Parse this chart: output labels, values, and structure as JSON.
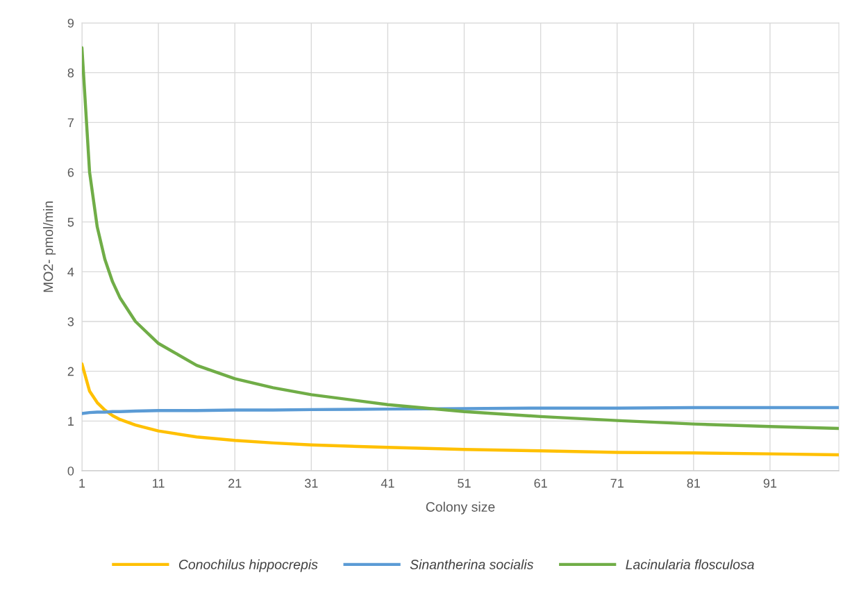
{
  "chart_data": {
    "type": "line",
    "xlabel": "Colony size",
    "ylabel": "MO2- pmol/min",
    "xlim": [
      1,
      100
    ],
    "xticks": [
      1,
      11,
      21,
      31,
      41,
      51,
      61,
      71,
      81,
      91
    ],
    "ylim": [
      0,
      9
    ],
    "yticks": [
      0,
      1,
      2,
      3,
      4,
      5,
      6,
      7,
      8,
      9
    ],
    "grid": true,
    "legend": "bottom",
    "marker": "none",
    "line_style": "solid",
    "x": [
      1,
      2,
      3,
      4,
      5,
      6,
      8,
      11,
      16,
      21,
      26,
      31,
      41,
      51,
      61,
      71,
      81,
      91,
      100
    ],
    "series": [
      {
        "name": "Conochilus hippocrepis",
        "color": "#ffc000",
        "values": [
          2.15,
          1.6,
          1.37,
          1.22,
          1.11,
          1.03,
          0.92,
          0.8,
          0.68,
          0.61,
          0.56,
          0.52,
          0.47,
          0.43,
          0.4,
          0.37,
          0.36,
          0.34,
          0.32
        ]
      },
      {
        "name": "Sinantherina socialis",
        "color": "#5b9bd5",
        "values": [
          1.15,
          1.17,
          1.18,
          1.18,
          1.19,
          1.19,
          1.2,
          1.21,
          1.21,
          1.22,
          1.22,
          1.23,
          1.24,
          1.25,
          1.26,
          1.26,
          1.27,
          1.27,
          1.27
        ]
      },
      {
        "name": "Lacinularia flosculosa",
        "color": "#70ad47",
        "values": [
          8.5,
          6.0,
          4.9,
          4.25,
          3.8,
          3.47,
          3.0,
          2.56,
          2.12,
          1.85,
          1.67,
          1.53,
          1.33,
          1.19,
          1.09,
          1.01,
          0.94,
          0.89,
          0.85
        ]
      }
    ]
  }
}
